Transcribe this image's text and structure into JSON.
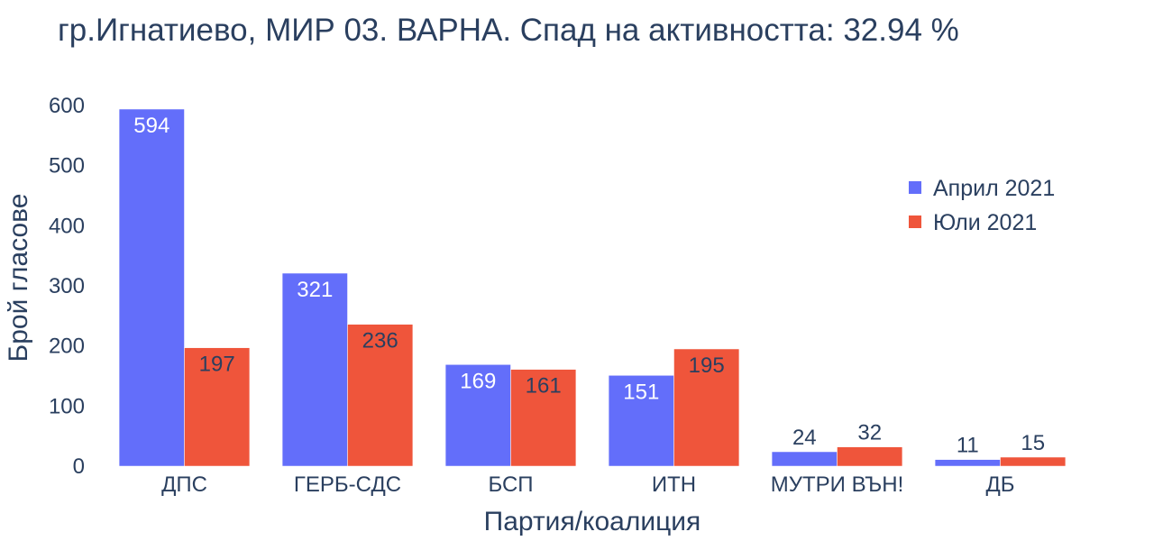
{
  "chart_data": {
    "type": "bar",
    "title": "гр.Игнатиево, МИР 03. ВАРНА. Спад на активността: 32.94 %",
    "xlabel": "Партия/коалиция",
    "ylabel": "Брой гласове",
    "ylim": [
      0,
      600
    ],
    "yticks": [
      0,
      100,
      200,
      300,
      400,
      500,
      600
    ],
    "grid": false,
    "legend_position": "top-right",
    "categories": [
      "ДПС",
      "ГЕРБ-СДС",
      "БСП",
      "ИТН",
      "МУТРИ ВЪН!",
      "ДБ"
    ],
    "series": [
      {
        "name": "Април 2021",
        "color": "#636efa",
        "values": [
          594,
          321,
          169,
          151,
          24,
          11
        ]
      },
      {
        "name": "Юли 2021",
        "color": "#ef553b",
        "values": [
          197,
          236,
          161,
          195,
          32,
          15
        ]
      }
    ]
  }
}
